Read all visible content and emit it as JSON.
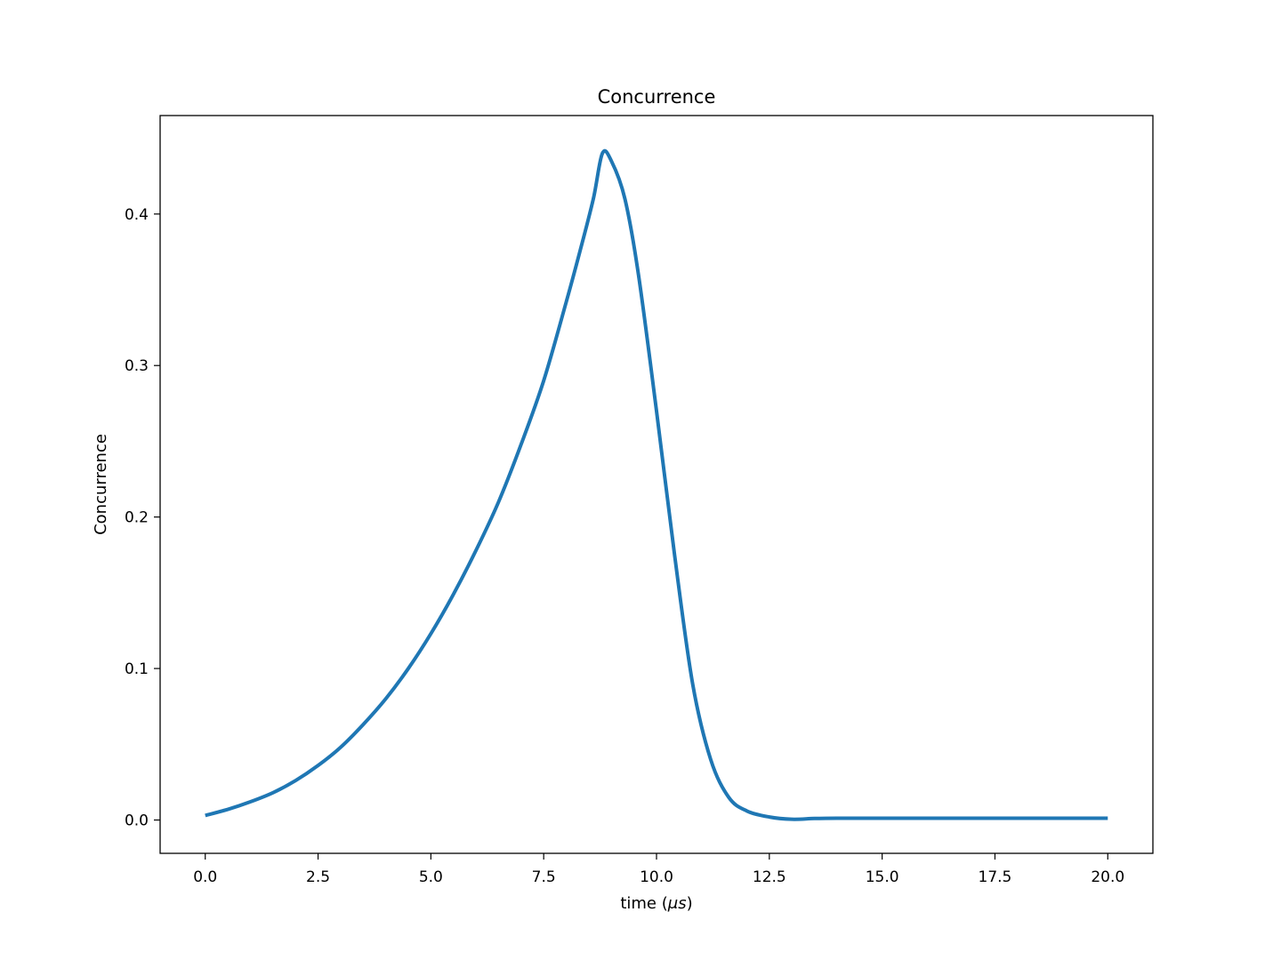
{
  "chart_data": {
    "type": "line",
    "title": "Concurrence",
    "xlabel_prefix": "time (",
    "xlabel_mu": "μs",
    "xlabel_suffix": ")",
    "ylabel": "Concurrence",
    "xlim": [
      -1.0,
      21.0
    ],
    "ylim": [
      -0.022,
      0.465
    ],
    "xticks": [
      0.0,
      2.5,
      5.0,
      7.5,
      10.0,
      12.5,
      15.0,
      17.5,
      20.0
    ],
    "xtick_labels": [
      "0.0",
      "2.5",
      "5.0",
      "7.5",
      "10.0",
      "12.5",
      "15.0",
      "17.5",
      "20.0"
    ],
    "yticks": [
      0.0,
      0.1,
      0.2,
      0.3,
      0.4
    ],
    "ytick_labels": [
      "0.0",
      "0.1",
      "0.2",
      "0.3",
      "0.4"
    ],
    "grid": false,
    "legend": "none",
    "series": [
      {
        "color": "#1f77b4",
        "x": [
          0.0,
          0.5,
          1.0,
          1.5,
          2.0,
          2.5,
          3.0,
          3.5,
          4.0,
          4.5,
          5.0,
          5.5,
          6.0,
          6.5,
          7.0,
          7.5,
          8.0,
          8.3,
          8.6,
          8.8,
          9.0,
          9.3,
          9.6,
          10.0,
          10.4,
          10.8,
          11.2,
          11.6,
          12.0,
          12.5,
          13.0,
          13.5,
          14.0,
          15.0,
          16.0,
          17.0,
          18.0,
          19.0,
          20.0
        ],
        "y": [
          0.003,
          0.007,
          0.012,
          0.018,
          0.026,
          0.036,
          0.048,
          0.063,
          0.08,
          0.1,
          0.123,
          0.149,
          0.178,
          0.21,
          0.248,
          0.29,
          0.342,
          0.375,
          0.41,
          0.44,
          0.435,
          0.41,
          0.36,
          0.27,
          0.175,
          0.09,
          0.04,
          0.015,
          0.006,
          0.002,
          0.0005,
          0.001,
          0.0012,
          0.0012,
          0.0012,
          0.0012,
          0.0012,
          0.0012,
          0.0012
        ]
      }
    ]
  }
}
